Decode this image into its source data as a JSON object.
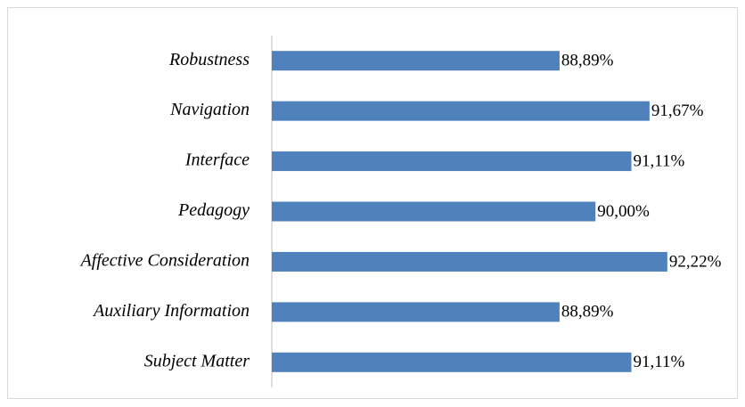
{
  "chart_data": {
    "type": "bar",
    "orientation": "horizontal",
    "categories": [
      "Robustness",
      "Navigation",
      "Interface",
      "Pedagogy",
      "Affective Consideration",
      "Auxiliary Information",
      "Subject Matter"
    ],
    "values": [
      88.89,
      91.67,
      91.11,
      90.0,
      92.22,
      88.89,
      91.11
    ],
    "value_labels": [
      "88,89%",
      "91,67%",
      "91,11%",
      "90,00%",
      "92,22%",
      "88,89%",
      "91,11%"
    ],
    "color": "#4f81bd",
    "xlim": [
      80,
      92.5
    ]
  }
}
